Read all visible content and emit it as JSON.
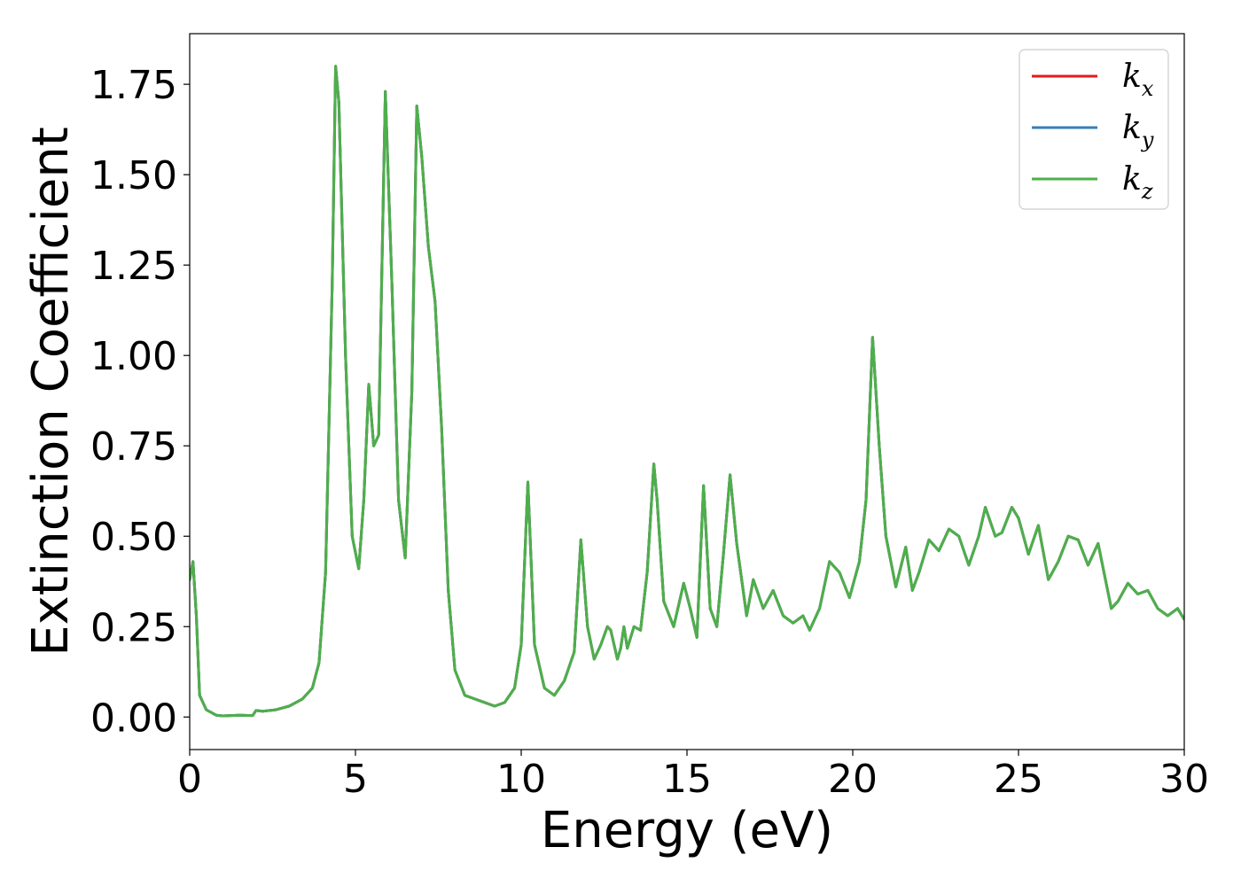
{
  "chart_data": {
    "type": "line",
    "title": "",
    "xlabel": "Energy (eV)",
    "ylabel": "Extinction Coefficient",
    "xlim": [
      0,
      30
    ],
    "ylim": [
      -0.09,
      1.89
    ],
    "xticks": [
      0,
      5,
      10,
      15,
      20,
      25,
      30
    ],
    "xtick_labels": [
      "0",
      "5",
      "10",
      "15",
      "20",
      "25",
      "30"
    ],
    "yticks": [
      0.0,
      0.25,
      0.5,
      0.75,
      1.0,
      1.25,
      1.5,
      1.75
    ],
    "ytick_labels": [
      "0.00",
      "0.25",
      "0.50",
      "0.75",
      "1.00",
      "1.25",
      "1.50",
      "1.75"
    ],
    "grid": false,
    "legend_position": "top-right",
    "legend": [
      {
        "base": "k",
        "sub": "x",
        "color": "#e41a1c"
      },
      {
        "base": "k",
        "sub": "y",
        "color": "#377eb8"
      },
      {
        "base": "k",
        "sub": "z",
        "color": "#4daf4a"
      }
    ],
    "x": [
      0.0,
      0.1,
      0.2,
      0.3,
      0.5,
      0.8,
      1.0,
      1.5,
      1.9,
      2.0,
      2.2,
      2.6,
      3.0,
      3.4,
      3.7,
      3.9,
      4.1,
      4.3,
      4.4,
      4.5,
      4.7,
      4.9,
      5.1,
      5.25,
      5.4,
      5.55,
      5.7,
      5.9,
      6.1,
      6.3,
      6.5,
      6.7,
      6.85,
      7.0,
      7.2,
      7.4,
      7.6,
      7.8,
      8.0,
      8.3,
      8.6,
      8.9,
      9.2,
      9.5,
      9.8,
      10.0,
      10.2,
      10.4,
      10.7,
      11.0,
      11.3,
      11.6,
      11.8,
      12.0,
      12.2,
      12.4,
      12.6,
      12.7,
      12.9,
      13.0,
      13.1,
      13.2,
      13.4,
      13.6,
      13.8,
      14.0,
      14.1,
      14.3,
      14.6,
      14.9,
      15.1,
      15.3,
      15.5,
      15.7,
      15.9,
      16.1,
      16.3,
      16.5,
      16.8,
      17.0,
      17.3,
      17.6,
      17.9,
      18.2,
      18.5,
      18.7,
      19.0,
      19.3,
      19.6,
      19.9,
      20.2,
      20.4,
      20.6,
      20.8,
      21.0,
      21.3,
      21.6,
      21.8,
      22.0,
      22.3,
      22.6,
      22.9,
      23.2,
      23.5,
      23.8,
      24.0,
      24.3,
      24.5,
      24.8,
      25.0,
      25.3,
      25.6,
      25.9,
      26.2,
      26.5,
      26.8,
      27.1,
      27.4,
      27.8,
      28.0,
      28.3,
      28.6,
      28.9,
      29.2,
      29.5,
      29.8,
      30.0
    ],
    "series": [
      {
        "name": "k_x",
        "color": "#e41a1c",
        "y": [
          0.38,
          0.43,
          0.28,
          0.06,
          0.02,
          0.005,
          0.003,
          0.005,
          0.004,
          0.018,
          0.016,
          0.02,
          0.03,
          0.05,
          0.08,
          0.15,
          0.4,
          1.2,
          1.8,
          1.7,
          1.0,
          0.5,
          0.41,
          0.6,
          0.92,
          0.75,
          0.78,
          1.73,
          1.2,
          0.6,
          0.44,
          0.9,
          1.69,
          1.55,
          1.3,
          1.15,
          0.8,
          0.35,
          0.13,
          0.06,
          0.05,
          0.04,
          0.03,
          0.04,
          0.08,
          0.2,
          0.65,
          0.2,
          0.08,
          0.06,
          0.1,
          0.18,
          0.49,
          0.25,
          0.16,
          0.2,
          0.25,
          0.24,
          0.16,
          0.19,
          0.25,
          0.19,
          0.25,
          0.24,
          0.4,
          0.7,
          0.6,
          0.32,
          0.25,
          0.37,
          0.3,
          0.22,
          0.64,
          0.3,
          0.25,
          0.45,
          0.67,
          0.48,
          0.28,
          0.38,
          0.3,
          0.35,
          0.28,
          0.26,
          0.28,
          0.24,
          0.3,
          0.43,
          0.4,
          0.33,
          0.43,
          0.6,
          1.05,
          0.75,
          0.5,
          0.36,
          0.47,
          0.35,
          0.4,
          0.49,
          0.46,
          0.52,
          0.5,
          0.42,
          0.5,
          0.58,
          0.5,
          0.51,
          0.58,
          0.55,
          0.45,
          0.53,
          0.38,
          0.43,
          0.5,
          0.49,
          0.42,
          0.48,
          0.3,
          0.32,
          0.37,
          0.34,
          0.35,
          0.3,
          0.28,
          0.3,
          0.27
        ]
      },
      {
        "name": "k_y",
        "color": "#377eb8",
        "y": [
          0.38,
          0.43,
          0.28,
          0.06,
          0.02,
          0.005,
          0.003,
          0.005,
          0.004,
          0.018,
          0.016,
          0.02,
          0.03,
          0.05,
          0.08,
          0.15,
          0.4,
          1.2,
          1.8,
          1.7,
          1.0,
          0.5,
          0.41,
          0.6,
          0.92,
          0.75,
          0.78,
          1.73,
          1.2,
          0.6,
          0.44,
          0.9,
          1.69,
          1.55,
          1.3,
          1.15,
          0.8,
          0.35,
          0.13,
          0.06,
          0.05,
          0.04,
          0.03,
          0.04,
          0.08,
          0.2,
          0.65,
          0.2,
          0.08,
          0.06,
          0.1,
          0.18,
          0.49,
          0.25,
          0.16,
          0.2,
          0.25,
          0.24,
          0.16,
          0.19,
          0.25,
          0.19,
          0.25,
          0.24,
          0.4,
          0.7,
          0.6,
          0.32,
          0.25,
          0.37,
          0.3,
          0.22,
          0.64,
          0.3,
          0.25,
          0.45,
          0.67,
          0.48,
          0.28,
          0.38,
          0.3,
          0.35,
          0.28,
          0.26,
          0.28,
          0.24,
          0.3,
          0.43,
          0.4,
          0.33,
          0.43,
          0.6,
          1.05,
          0.75,
          0.5,
          0.36,
          0.47,
          0.35,
          0.4,
          0.49,
          0.46,
          0.52,
          0.5,
          0.42,
          0.5,
          0.58,
          0.5,
          0.51,
          0.58,
          0.55,
          0.45,
          0.53,
          0.38,
          0.43,
          0.5,
          0.49,
          0.42,
          0.48,
          0.3,
          0.32,
          0.37,
          0.34,
          0.35,
          0.3,
          0.28,
          0.3,
          0.27
        ]
      },
      {
        "name": "k_z",
        "color": "#4daf4a",
        "y": [
          0.38,
          0.43,
          0.28,
          0.06,
          0.02,
          0.005,
          0.003,
          0.005,
          0.004,
          0.018,
          0.016,
          0.02,
          0.03,
          0.05,
          0.08,
          0.15,
          0.4,
          1.2,
          1.8,
          1.7,
          1.0,
          0.5,
          0.41,
          0.6,
          0.92,
          0.75,
          0.78,
          1.73,
          1.2,
          0.6,
          0.44,
          0.9,
          1.69,
          1.55,
          1.3,
          1.15,
          0.8,
          0.35,
          0.13,
          0.06,
          0.05,
          0.04,
          0.03,
          0.04,
          0.08,
          0.2,
          0.65,
          0.2,
          0.08,
          0.06,
          0.1,
          0.18,
          0.49,
          0.25,
          0.16,
          0.2,
          0.25,
          0.24,
          0.16,
          0.19,
          0.25,
          0.19,
          0.25,
          0.24,
          0.4,
          0.7,
          0.6,
          0.32,
          0.25,
          0.37,
          0.3,
          0.22,
          0.64,
          0.3,
          0.25,
          0.45,
          0.67,
          0.48,
          0.28,
          0.38,
          0.3,
          0.35,
          0.28,
          0.26,
          0.28,
          0.24,
          0.3,
          0.43,
          0.4,
          0.33,
          0.43,
          0.6,
          1.05,
          0.75,
          0.5,
          0.36,
          0.47,
          0.35,
          0.4,
          0.49,
          0.46,
          0.52,
          0.5,
          0.42,
          0.5,
          0.58,
          0.5,
          0.51,
          0.58,
          0.55,
          0.45,
          0.53,
          0.38,
          0.43,
          0.5,
          0.49,
          0.42,
          0.48,
          0.3,
          0.32,
          0.37,
          0.34,
          0.35,
          0.3,
          0.28,
          0.3,
          0.27
        ]
      }
    ]
  }
}
